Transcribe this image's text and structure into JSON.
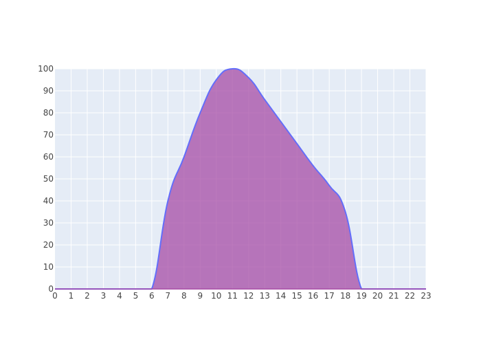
{
  "chart_data": {
    "type": "area",
    "xlim": [
      0,
      23
    ],
    "ylim": [
      0,
      100
    ],
    "x_ticks": [
      0,
      1,
      2,
      3,
      4,
      5,
      6,
      7,
      8,
      9,
      10,
      11,
      12,
      13,
      14,
      15,
      16,
      17,
      18,
      19,
      20,
      21,
      22,
      23
    ],
    "y_ticks": [
      0,
      10,
      20,
      30,
      40,
      50,
      60,
      70,
      80,
      90,
      100
    ],
    "grid": true,
    "series": [
      {
        "x": [
          0,
          1,
          2,
          3,
          4,
          5,
          6,
          7,
          8,
          9,
          10,
          11,
          12,
          13,
          14,
          15,
          16,
          17,
          18,
          19,
          20,
          21,
          22,
          23
        ],
        "values": [
          0,
          0,
          0,
          0,
          0,
          0,
          0,
          40,
          60,
          80,
          95,
          100,
          96,
          86,
          76,
          66,
          56,
          47,
          35,
          0,
          0,
          0,
          0,
          0
        ],
        "line_color": "#636efa",
        "fill_color": "#a64ca6",
        "fill_opacity": 0.75
      }
    ],
    "plot_background": "#e5ecf6",
    "grid_color": "#ffffff",
    "tick_label_color": "#444444"
  }
}
